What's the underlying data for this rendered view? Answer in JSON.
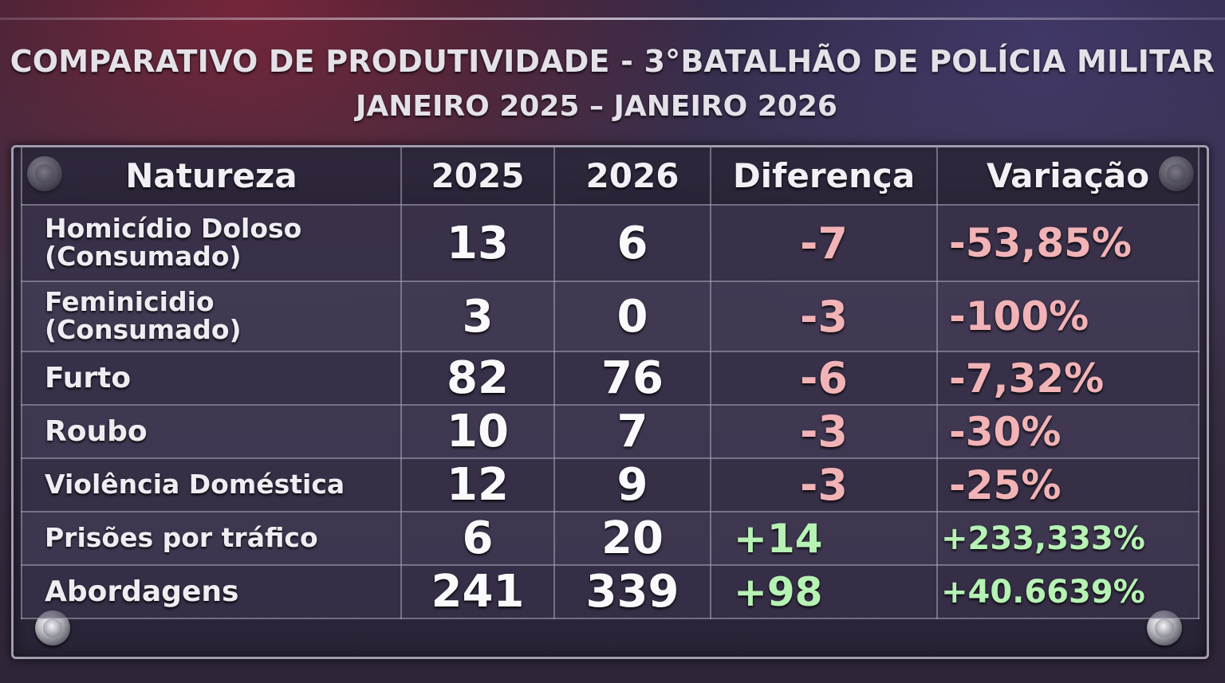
{
  "title": "COMPARATIVO DE PRODUTIVIDADE - 3°BATALHÃO DE POLÍCIA MILITAR",
  "subtitle": "JANEIRO 2025 – JANEIRO 2026",
  "table": {
    "headers": [
      "Natureza",
      "2025",
      "2026",
      "Diferença",
      "Variação"
    ],
    "rows": [
      {
        "natureza": "Homicídio Doloso (Consumado)",
        "y2025": "13",
        "y2026": "6",
        "diferenca": "-7",
        "variacao": "-53,85%"
      },
      {
        "natureza": "Feminicidio (Consumado)",
        "y2025": "3",
        "y2026": "0",
        "diferenca": "-3",
        "variacao": "-100%"
      },
      {
        "natureza": "Furto",
        "y2025": "82",
        "y2026": "76",
        "diferenca": "-6",
        "variacao": "-7,32%"
      },
      {
        "natureza": "Roubo",
        "y2025": "10",
        "y2026": "7",
        "diferenca": "-3",
        "variacao": "-30%"
      },
      {
        "natureza": "Violência Doméstica",
        "y2025": "12",
        "y2026": "9",
        "diferenca": "-3",
        "variacao": "-25%"
      },
      {
        "natureza": "Prisões por tráfico",
        "y2025": "6",
        "y2026": "20",
        "diferenca": "+14",
        "variacao": "+233,333%"
      },
      {
        "natureza": "Abordagens",
        "y2025": "241",
        "y2026": "339",
        "diferenca": "+98",
        "variacao": "+40.6639%"
      }
    ]
  },
  "colors": {
    "negative": "#f2b3b6",
    "positive": "#b6f2b4",
    "text": "#f3f1f6"
  }
}
